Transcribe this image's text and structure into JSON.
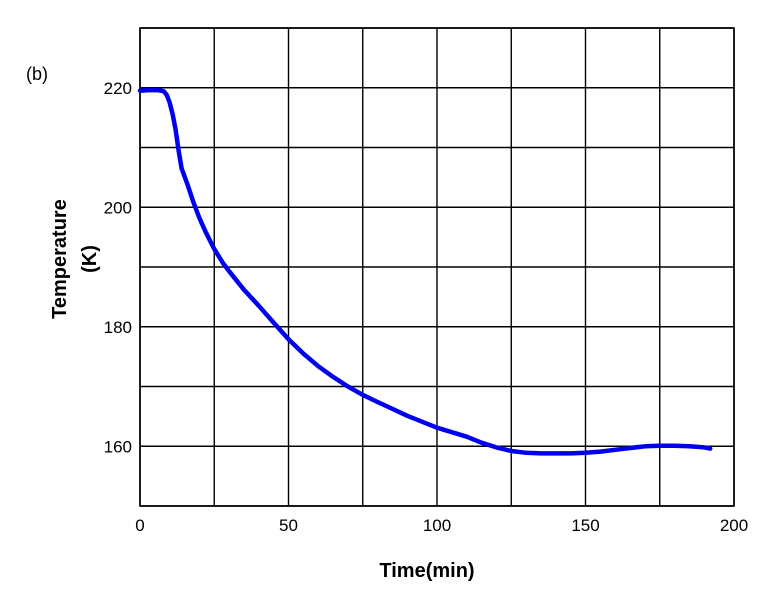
{
  "chart_data": {
    "type": "line",
    "panel_label": "(b)",
    "xlabel": "Time(min)",
    "ylabel_line1": "Temperature",
    "ylabel_line2": "(K)",
    "xlim": [
      0,
      200
    ],
    "ylim": [
      150,
      230
    ],
    "xticks": [
      0,
      50,
      100,
      150,
      200
    ],
    "yticks": [
      160,
      180,
      200,
      220
    ],
    "x_gridlines": [
      0,
      25,
      50,
      75,
      100,
      125,
      150,
      175,
      200
    ],
    "y_gridlines": [
      150,
      160,
      170,
      180,
      190,
      200,
      210,
      220,
      230
    ],
    "grid": true,
    "colors": {
      "series": "#0000ee",
      "grid": "#000000"
    },
    "series": [
      {
        "x": [
          0,
          3,
          6,
          8,
          9,
          10,
          11,
          12,
          13,
          14,
          16,
          18,
          20,
          22,
          25,
          28,
          30,
          35,
          40,
          45,
          50,
          55,
          60,
          65,
          70,
          75,
          80,
          90,
          100,
          110,
          115,
          120,
          125,
          130,
          135,
          140,
          145,
          150,
          155,
          160,
          165,
          170,
          175,
          180,
          185,
          190,
          192
        ],
        "values": [
          219.5,
          219.6,
          219.6,
          219.4,
          218.8,
          217.5,
          215.5,
          213.0,
          209.5,
          206.5,
          203.8,
          200.8,
          198.2,
          196.0,
          193.0,
          190.6,
          189.3,
          186.2,
          183.5,
          180.7,
          177.9,
          175.5,
          173.4,
          171.6,
          170.0,
          168.6,
          167.4,
          165.1,
          163.1,
          161.6,
          160.6,
          159.8,
          159.2,
          158.9,
          158.8,
          158.8,
          158.8,
          158.9,
          159.1,
          159.4,
          159.7,
          160.0,
          160.1,
          160.1,
          160.0,
          159.8,
          159.6
        ]
      }
    ]
  }
}
